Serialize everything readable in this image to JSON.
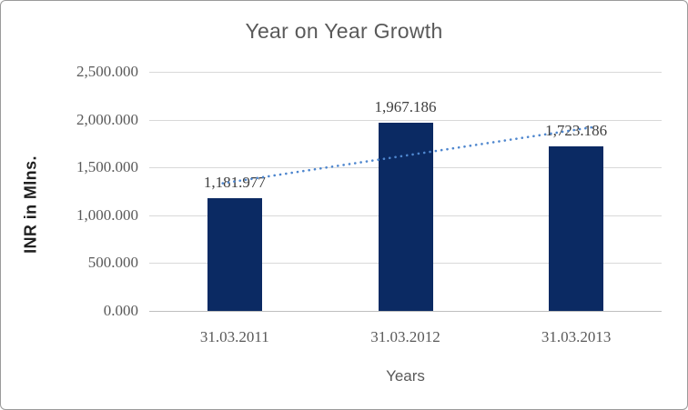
{
  "window": {
    "background": "#ffffff",
    "border_color": "#9a9a9a"
  },
  "chart_data": {
    "type": "bar",
    "title": "Year on Year Growth",
    "xlabel": "Years",
    "ylabel": "INR in Mlns.",
    "categories": [
      "31.03.2011",
      "31.03.2012",
      "31.03.2013"
    ],
    "values": [
      1181.977,
      1967.186,
      1723.186
    ],
    "data_labels": [
      "1,181.977",
      "1,967.186",
      "1,723.186"
    ],
    "ylim": [
      0,
      2500
    ],
    "yticks": [
      {
        "value": 0,
        "label": "0.000"
      },
      {
        "value": 500,
        "label": "500.000"
      },
      {
        "value": 1000,
        "label": "1,000.000"
      },
      {
        "value": 1500,
        "label": "1,500.000"
      },
      {
        "value": 2000,
        "label": "2,000.000"
      },
      {
        "value": 2500,
        "label": "2,500.000"
      }
    ],
    "grid": true,
    "legend": "none",
    "bar_color": "#0B2A63",
    "trendline": {
      "type": "linear",
      "style": "dotted",
      "color": "#4E86CE"
    },
    "colors": {
      "title": "#595959",
      "tick_label": "#595959",
      "data_label": "#3F3F3F",
      "category_label": "#595959",
      "axis_title": "#1F1F1F",
      "gridline": "#D9D9D9",
      "axis_line": "#BFBFBF"
    }
  }
}
